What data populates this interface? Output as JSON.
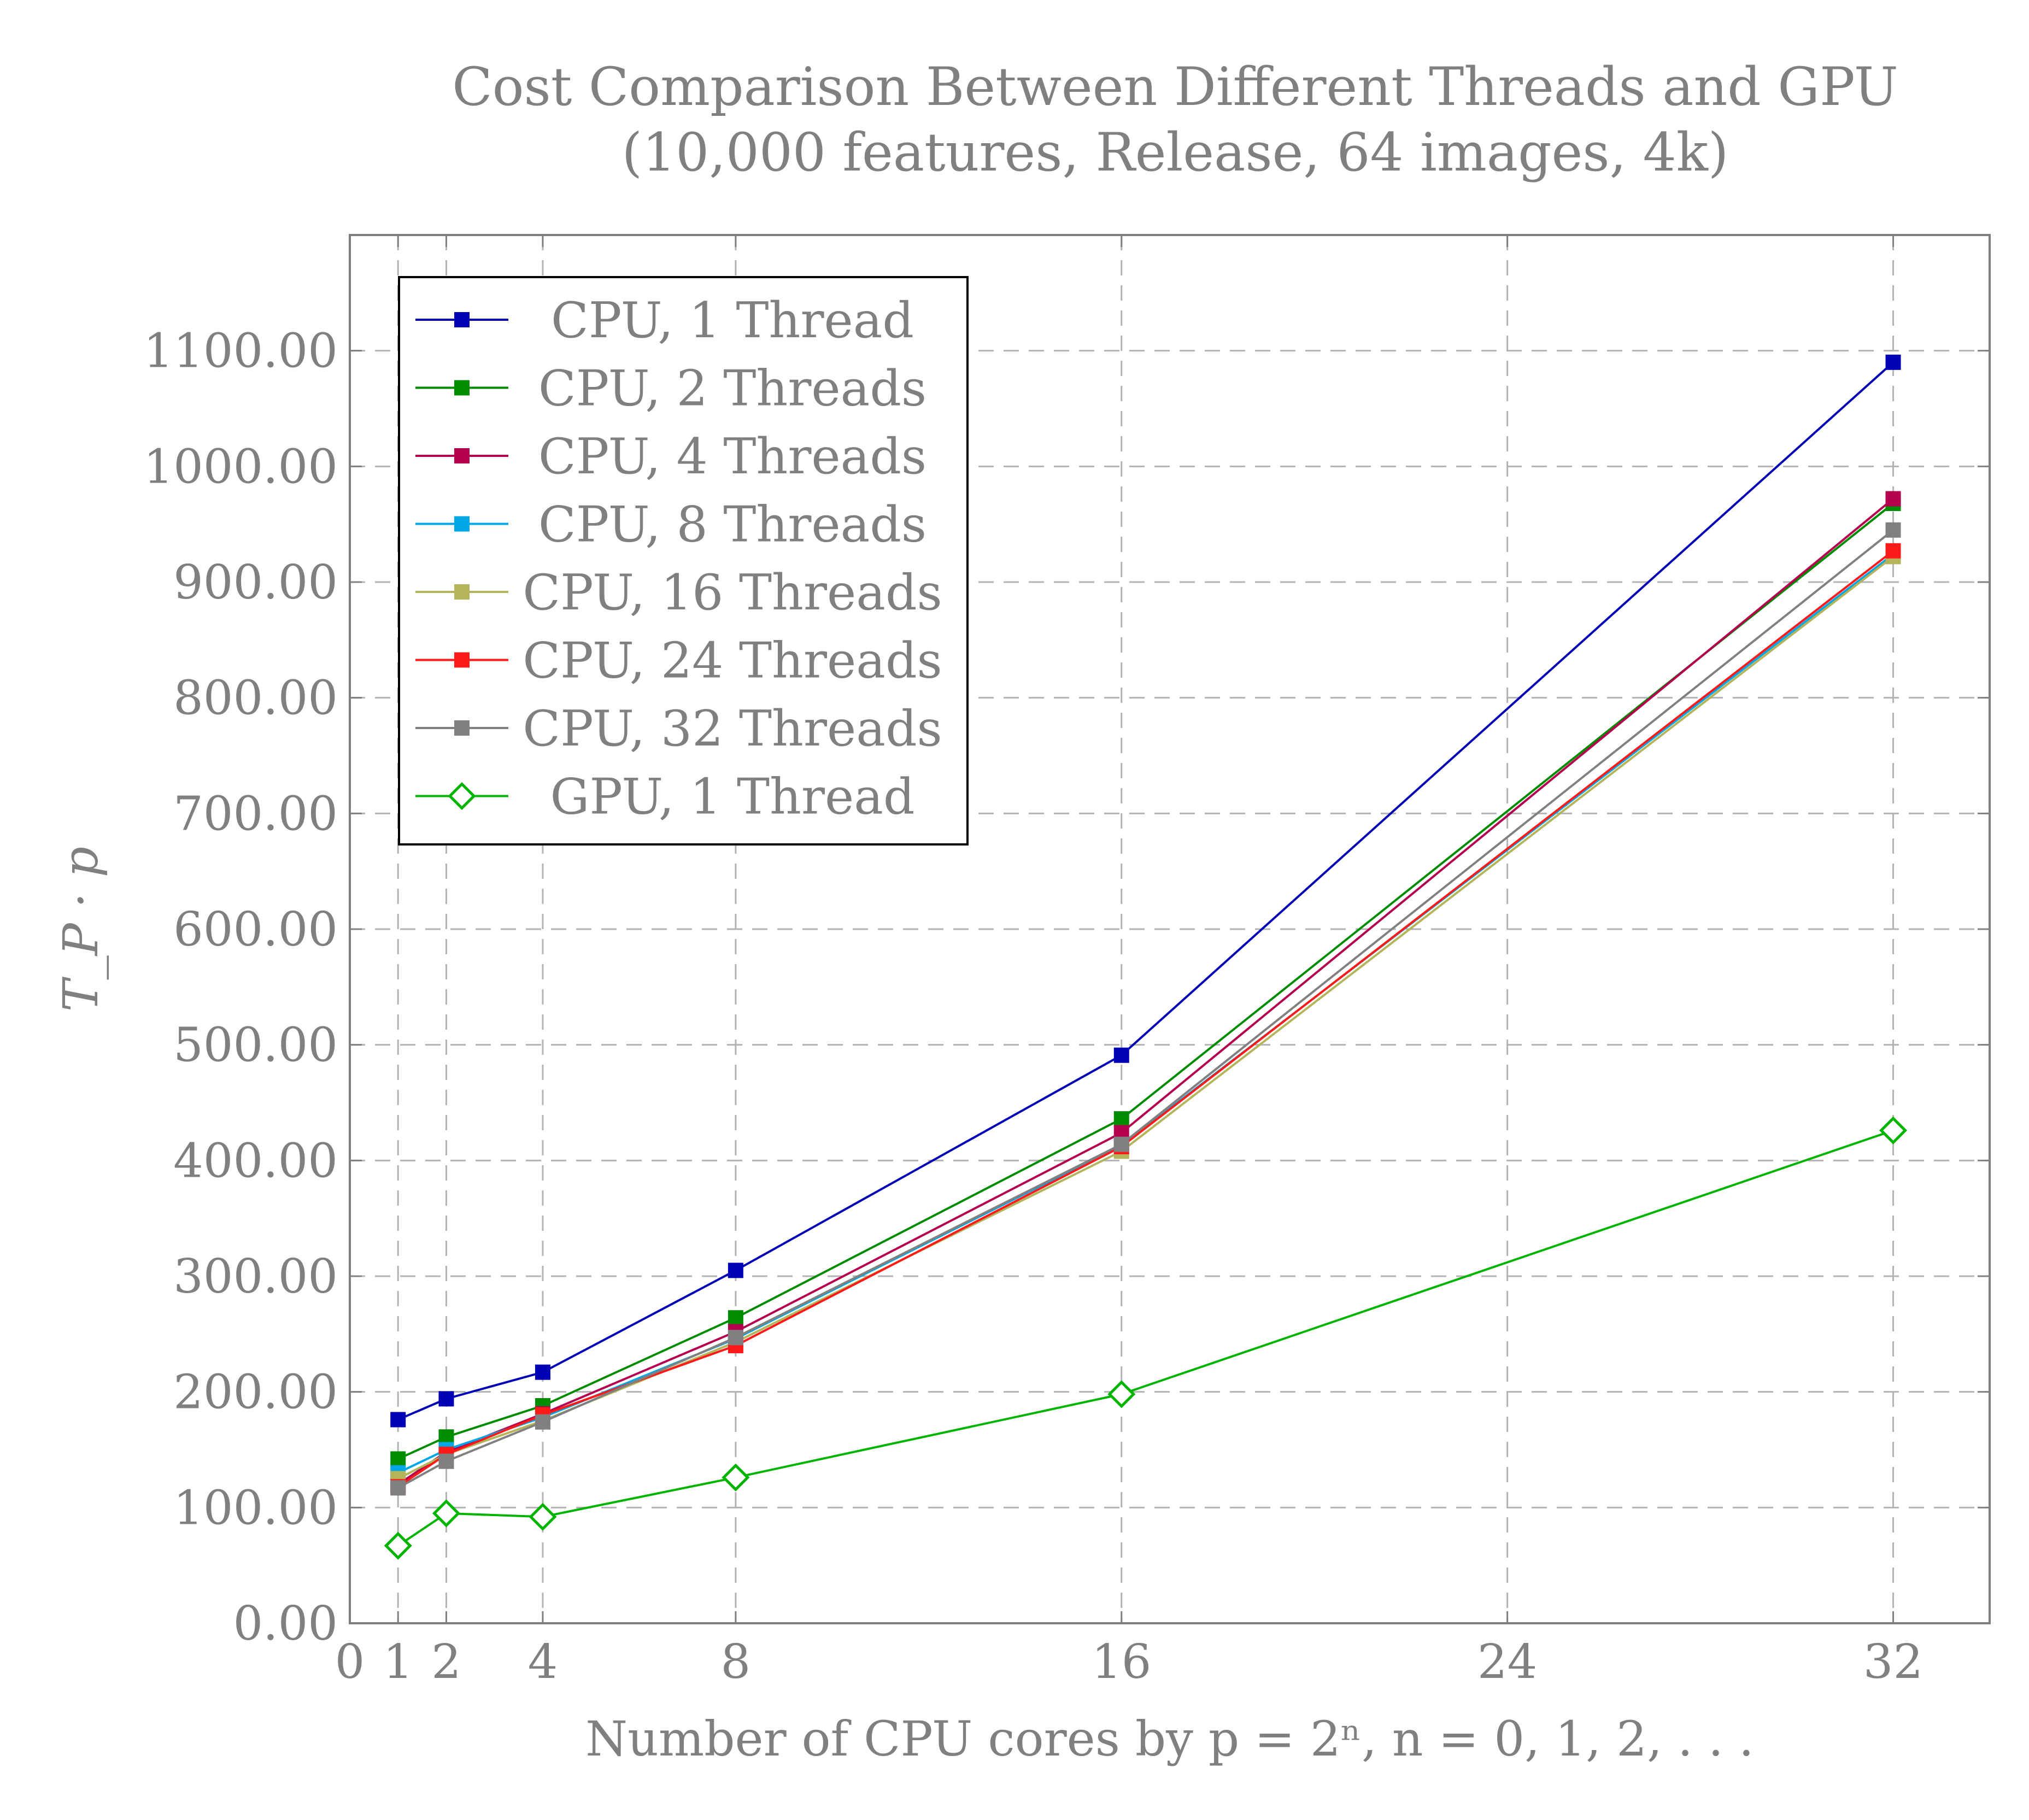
{
  "chart_data": {
    "type": "line",
    "title": "Cost Comparison Between Different Threads and GPU",
    "subtitle": "(10,000 features, Release, 64 images, 4k)",
    "xlabel": "Number of CPU cores by p = 2ⁿ, n = 0, 1, 2, . . .",
    "ylabel": "T_P · p",
    "xlim": [
      0,
      34
    ],
    "ylim": [
      0,
      1200
    ],
    "x_ticks": [
      0,
      1,
      2,
      4,
      8,
      16,
      24,
      32
    ],
    "x_tick_labels": [
      "0",
      "1",
      "2",
      "4",
      "8",
      "16",
      "24",
      "32"
    ],
    "y_ticks": [
      0,
      100,
      200,
      300,
      400,
      500,
      600,
      700,
      800,
      900,
      1000,
      1100
    ],
    "y_tick_labels": [
      "0.00",
      "100.00",
      "200.00",
      "300.00",
      "400.00",
      "500.00",
      "600.00",
      "700.00",
      "800.00",
      "900.00",
      "1000.00",
      "1100.00"
    ],
    "grid": true,
    "legend_position": "top-left",
    "x": [
      1,
      2,
      4,
      8,
      16,
      32
    ],
    "series": [
      {
        "name": "CPU, 1 Thread",
        "color": "#0000b4",
        "marker": "square",
        "values": [
          176,
          194,
          217,
          305,
          491,
          1090
        ]
      },
      {
        "name": "CPU, 2 Threads",
        "color": "#008c00",
        "marker": "square",
        "values": [
          142,
          161,
          188,
          264,
          436,
          968
        ]
      },
      {
        "name": "CPU, 4 Threads",
        "color": "#b4004e",
        "marker": "square",
        "values": [
          120,
          148,
          181,
          252,
          424,
          972
        ]
      },
      {
        "name": "CPU, 8 Threads",
        "color": "#00a6e6",
        "marker": "square",
        "values": [
          130,
          150,
          178,
          246,
          413,
          924
        ]
      },
      {
        "name": "CPU, 16 Threads",
        "color": "#b4b45a",
        "marker": "square",
        "values": [
          125,
          146,
          175,
          243,
          408,
          922
        ]
      },
      {
        "name": "CPU, 24 Threads",
        "color": "#ff1a1a",
        "marker": "square",
        "values": [
          118,
          146,
          180,
          240,
          412,
          927
        ]
      },
      {
        "name": "CPU, 32 Threads",
        "color": "#808080",
        "marker": "square",
        "values": [
          117,
          140,
          174,
          247,
          414,
          945
        ]
      },
      {
        "name": "GPU, 1 Thread",
        "color": "#00b400",
        "marker": "diamond",
        "values": [
          67,
          95,
          92,
          126,
          198,
          426
        ]
      }
    ]
  }
}
